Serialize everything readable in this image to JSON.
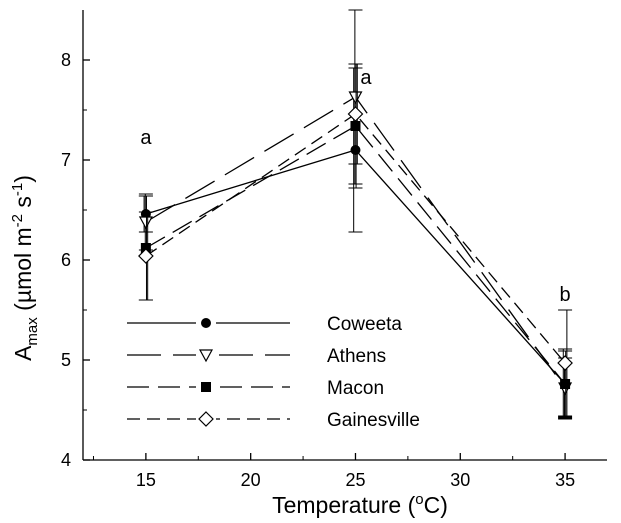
{
  "chart_data": {
    "type": "line",
    "xlabel": "Temperature (",
    "xlabel_sup": "o",
    "xlabel_end": "C)",
    "ylabel": {
      "main": "A",
      "sub": "max",
      "unit_pre": " (µmol m",
      "sup1": "-2",
      "unit_mid": " s",
      "sup2": "-1",
      "unit_end": ")"
    },
    "xlim": [
      12,
      37
    ],
    "ylim": [
      4,
      8.5
    ],
    "xticks": [
      15,
      20,
      25,
      30,
      35
    ],
    "yticks": [
      4,
      5,
      6,
      7,
      8
    ],
    "x": [
      15,
      25,
      35
    ],
    "series": [
      {
        "name": "Coweeta",
        "marker": "filled-circle",
        "dash": "solid",
        "values": [
          6.46,
          7.1,
          4.76
        ],
        "errors": [
          0.18,
          0.82,
          0.35
        ]
      },
      {
        "name": "Athens",
        "marker": "open-triangle-down",
        "dash": "long",
        "values": [
          6.38,
          7.63,
          4.72
        ],
        "errors": [
          0.28,
          0.87,
          0.3
        ]
      },
      {
        "name": "Macon",
        "marker": "filled-square",
        "dash": "medium",
        "values": [
          6.12,
          7.34,
          4.76
        ],
        "errors": [
          0.52,
          0.62,
          0.33
        ]
      },
      {
        "name": "Gainesville",
        "marker": "open-diamond",
        "dash": "short",
        "values": [
          6.04,
          7.46,
          4.97
        ],
        "errors": [
          0.44,
          0.5,
          0.53
        ]
      }
    ],
    "annotations": [
      {
        "text": "a",
        "x": 15,
        "y": 7.16
      },
      {
        "text": "a",
        "x": 25.5,
        "y": 7.76
      },
      {
        "text": "b",
        "x": 35,
        "y": 5.59
      }
    ],
    "legend_position": "bottom-left"
  }
}
